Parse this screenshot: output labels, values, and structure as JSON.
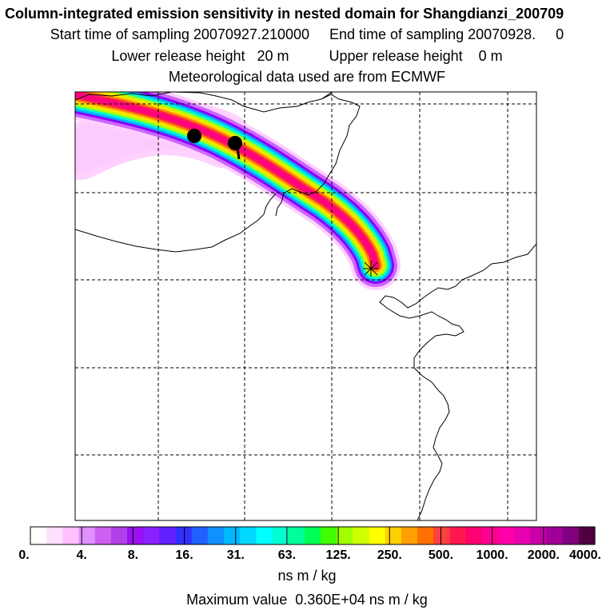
{
  "header": {
    "title": "Column-integrated emission sensitivity in nested domain for Shangdianzi_200709",
    "sampling_line": "Start time of sampling 20070927.210000     End time of sampling 20070928.     0",
    "height_line": "Lower release height   20 m          Upper release height    0 m",
    "met_line": "Meteorological data used are from ECMWF"
  },
  "map": {
    "plume_colors": [
      "#ffd0ff",
      "#cc66ff",
      "#8a00ff",
      "#00b0ff",
      "#00ffcc",
      "#b0ff00",
      "#ffe000",
      "#ff8800",
      "#ff1e50",
      "#ff0080"
    ],
    "release_marker": "release-point-star",
    "sample_markers": [
      "sample-dot-1",
      "sample-dot-2"
    ]
  },
  "legend": {
    "tick_labels": [
      "0.",
      "4.",
      "8.",
      "16.",
      "31.",
      "63.",
      "125.",
      "250.",
      "500.",
      "1000.",
      "2000.",
      "4000."
    ],
    "colors": [
      "#ffffff",
      "#ffe0ff",
      "#ffc0ff",
      "#e090ff",
      "#cc60f0",
      "#b040e8",
      "#9a10f0",
      "#8a20ff",
      "#6020ff",
      "#3030ff",
      "#2060ff",
      "#1090ff",
      "#00b8ff",
      "#00d8ff",
      "#00ffff",
      "#00ffd0",
      "#00ff99",
      "#00ff55",
      "#40ff00",
      "#a0ff00",
      "#d0ff00",
      "#ffff00",
      "#ffd000",
      "#ffa000",
      "#ff7000",
      "#ff4040",
      "#ff1850",
      "#ff0070",
      "#ff0090",
      "#ff00a8",
      "#e800b0",
      "#c800a8",
      "#a00098",
      "#800080",
      "#500040"
    ],
    "unit": "ns m / kg",
    "max_value_line": "Maximum value  0.360E+04 ns m / kg"
  }
}
